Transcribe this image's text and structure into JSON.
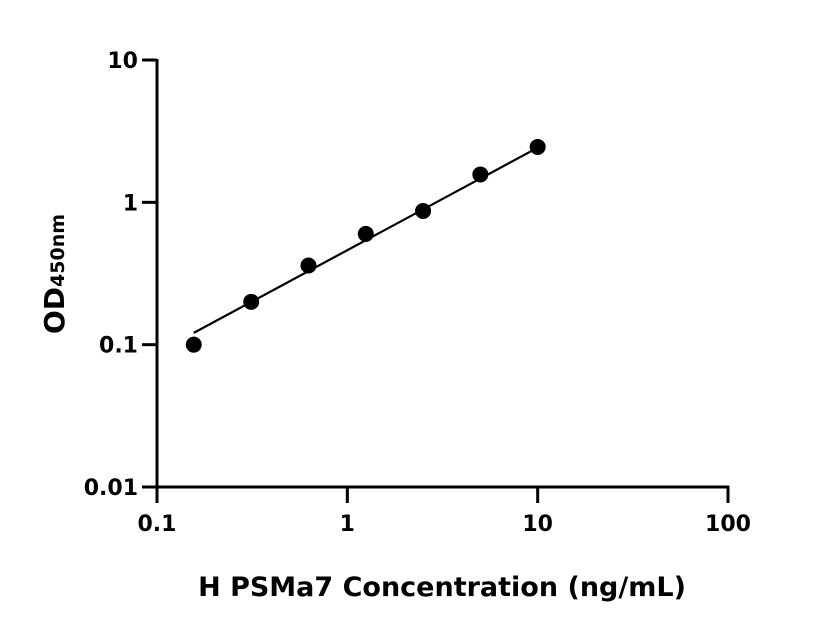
{
  "chart_data": {
    "type": "scatter",
    "title": "",
    "xlabel": "H PSMa7 Concentration (ng/mL)",
    "ylabel": {
      "main": "OD",
      "sub": "450nm"
    },
    "x_scale": "log",
    "y_scale": "log",
    "xlim": [
      0.1,
      100
    ],
    "ylim": [
      0.01,
      10
    ],
    "x_ticks": [
      0.1,
      1,
      10,
      100
    ],
    "x_tick_labels": [
      "0.1",
      "1",
      "10",
      "100"
    ],
    "y_ticks": [
      0.01,
      0.1,
      1,
      10
    ],
    "y_tick_labels": [
      "0.01",
      "0.1",
      "1",
      "10"
    ],
    "grid": false,
    "points": {
      "x": [
        0.156,
        0.3125,
        0.625,
        1.25,
        2.5,
        5,
        10
      ],
      "y": [
        0.1,
        0.2,
        0.36,
        0.6,
        0.87,
        1.57,
        2.45
      ]
    },
    "fit_line": {
      "x": [
        0.156,
        10
      ],
      "y": [
        0.121,
        2.42
      ]
    },
    "colors": {
      "points": "#000000",
      "line": "#000000",
      "axes": "#000000"
    }
  }
}
